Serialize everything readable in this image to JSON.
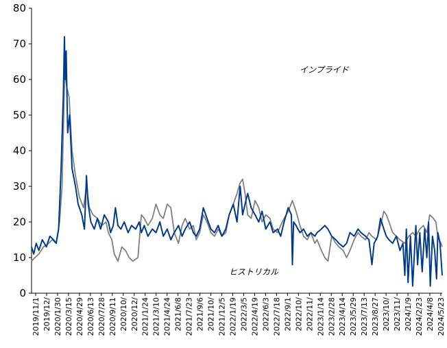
{
  "chart_data": {
    "type": "line",
    "title": "",
    "xlabel": "",
    "ylabel": "",
    "ylim": [
      0,
      80
    ],
    "yticks": [
      0,
      10,
      20,
      30,
      40,
      50,
      60,
      70,
      80
    ],
    "xlim": [
      "2019-11-01",
      "2024-06-10"
    ],
    "xtick_labels": [
      "2019/11/1",
      "2019/12/",
      "2020/1/30",
      "2020/3/15",
      "2020/4/29",
      "2020/6/13",
      "2020/7/28",
      "2020/9/11",
      "2020/10/",
      "2020/12/",
      "2021/1/24",
      "2021/3/10",
      "2021/4/24",
      "2021/6/8",
      "2021/7/23",
      "2021/9/6",
      "2021/10/",
      "2021/12/5",
      "2022/1/19",
      "2022/3/5",
      "2022/4/19",
      "2022/6/3",
      "2022/7/18",
      "2022/9/1",
      "2022/10/",
      "2022/11/",
      "2023/1/14",
      "2023/2/28",
      "2023/4/14",
      "2023/5/29",
      "2023/7/13",
      "2023/8/27",
      "2023/10/",
      "2023/11/",
      "2024/1/9",
      "2024/2/23",
      "2024/4/8",
      "2024/5/23"
    ],
    "grid": false,
    "annotations": [
      "インプライド",
      "ヒストリカル"
    ],
    "series": [
      {
        "key": "implied",
        "color": "#7f7f7f",
        "points": [
          [
            "2019-11-01",
            9
          ],
          [
            "2019-11-15",
            10
          ],
          [
            "2019-12-01",
            11
          ],
          [
            "2019-12-20",
            13
          ],
          [
            "2020-01-10",
            14
          ],
          [
            "2020-01-25",
            15
          ],
          [
            "2020-02-10",
            14
          ],
          [
            "2020-02-24",
            20
          ],
          [
            "2020-03-05",
            30
          ],
          [
            "2020-03-16",
            62
          ],
          [
            "2020-03-24",
            58
          ],
          [
            "2020-04-03",
            55
          ],
          [
            "2020-04-15",
            40
          ],
          [
            "2020-04-29",
            33
          ],
          [
            "2020-05-15",
            27
          ],
          [
            "2020-06-01",
            24
          ],
          [
            "2020-06-13",
            30
          ],
          [
            "2020-06-25",
            24
          ],
          [
            "2020-07-10",
            22
          ],
          [
            "2020-07-28",
            21
          ],
          [
            "2020-08-15",
            19
          ],
          [
            "2020-09-01",
            20
          ],
          [
            "2020-09-11",
            17
          ],
          [
            "2020-09-25",
            15
          ],
          [
            "2020-10-05",
            11
          ],
          [
            "2020-10-20",
            9
          ],
          [
            "2020-11-05",
            13
          ],
          [
            "2020-11-20",
            12
          ],
          [
            "2020-12-05",
            10
          ],
          [
            "2020-12-20",
            9
          ],
          [
            "2021-01-10",
            10
          ],
          [
            "2021-01-24",
            22
          ],
          [
            "2021-02-05",
            21
          ],
          [
            "2021-02-20",
            19
          ],
          [
            "2021-03-10",
            21
          ],
          [
            "2021-03-25",
            25
          ],
          [
            "2021-04-10",
            22
          ],
          [
            "2021-04-24",
            21
          ],
          [
            "2021-05-10",
            25
          ],
          [
            "2021-05-25",
            24
          ],
          [
            "2021-06-08",
            17
          ],
          [
            "2021-06-25",
            14
          ],
          [
            "2021-07-10",
            19
          ],
          [
            "2021-07-23",
            21
          ],
          [
            "2021-08-10",
            18
          ],
          [
            "2021-08-25",
            19
          ],
          [
            "2021-09-06",
            15
          ],
          [
            "2021-09-20",
            17
          ],
          [
            "2021-10-05",
            22
          ],
          [
            "2021-10-20",
            20
          ],
          [
            "2021-11-05",
            17
          ],
          [
            "2021-11-20",
            16
          ],
          [
            "2021-12-05",
            18
          ],
          [
            "2021-12-20",
            16
          ],
          [
            "2022-01-05",
            17
          ],
          [
            "2022-01-19",
            22
          ],
          [
            "2022-02-05",
            25
          ],
          [
            "2022-02-20",
            28
          ],
          [
            "2022-03-05",
            31
          ],
          [
            "2022-03-15",
            32
          ],
          [
            "2022-03-25",
            28
          ],
          [
            "2022-04-05",
            22
          ],
          [
            "2022-04-19",
            21
          ],
          [
            "2022-05-05",
            26
          ],
          [
            "2022-05-20",
            24
          ],
          [
            "2022-06-03",
            20
          ],
          [
            "2022-06-18",
            22
          ],
          [
            "2022-07-05",
            21
          ],
          [
            "2022-07-18",
            18
          ],
          [
            "2022-08-05",
            17
          ],
          [
            "2022-08-18",
            19
          ],
          [
            "2022-09-01",
            21
          ],
          [
            "2022-09-18",
            23
          ],
          [
            "2022-10-05",
            26
          ],
          [
            "2022-10-20",
            23
          ],
          [
            "2022-11-05",
            19
          ],
          [
            "2022-11-20",
            16
          ],
          [
            "2022-12-05",
            15
          ],
          [
            "2022-12-20",
            17
          ],
          [
            "2023-01-05",
            14
          ],
          [
            "2023-01-14",
            15
          ],
          [
            "2023-02-01",
            12
          ],
          [
            "2023-02-15",
            10
          ],
          [
            "2023-02-28",
            9
          ],
          [
            "2023-03-15",
            16
          ],
          [
            "2023-04-01",
            14
          ],
          [
            "2023-04-14",
            13
          ],
          [
            "2023-05-01",
            12
          ],
          [
            "2023-05-15",
            10
          ],
          [
            "2023-05-29",
            12
          ],
          [
            "2023-06-15",
            15
          ],
          [
            "2023-07-01",
            17
          ],
          [
            "2023-07-13",
            16
          ],
          [
            "2023-08-01",
            15
          ],
          [
            "2023-08-15",
            17
          ],
          [
            "2023-08-27",
            16
          ],
          [
            "2023-09-15",
            15
          ],
          [
            "2023-10-01",
            19
          ],
          [
            "2023-10-15",
            23
          ],
          [
            "2023-10-25",
            22
          ],
          [
            "2023-11-05",
            20
          ],
          [
            "2023-11-20",
            17
          ],
          [
            "2023-12-05",
            16
          ],
          [
            "2023-12-20",
            15
          ],
          [
            "2024-01-09",
            14
          ],
          [
            "2024-01-25",
            16
          ],
          [
            "2024-02-10",
            17
          ],
          [
            "2024-02-23",
            16
          ],
          [
            "2024-03-10",
            18
          ],
          [
            "2024-03-25",
            19
          ],
          [
            "2024-04-08",
            17
          ],
          [
            "2024-04-20",
            22
          ],
          [
            "2024-05-05",
            21
          ],
          [
            "2024-05-15",
            20
          ],
          [
            "2024-05-23",
            16
          ],
          [
            "2024-06-05",
            14
          ],
          [
            "2024-06-10",
            13
          ]
        ]
      },
      {
        "key": "historical",
        "color": "#003a8c",
        "points": [
          [
            "2019-11-01",
            13
          ],
          [
            "2019-11-10",
            11
          ],
          [
            "2019-11-20",
            14
          ],
          [
            "2019-12-01",
            12
          ],
          [
            "2019-12-15",
            15
          ],
          [
            "2020-01-01",
            13
          ],
          [
            "2020-01-15",
            16
          ],
          [
            "2020-01-30",
            15
          ],
          [
            "2020-02-10",
            14
          ],
          [
            "2020-02-20",
            18
          ],
          [
            "2020-03-01",
            35
          ],
          [
            "2020-03-10",
            55
          ],
          [
            "2020-03-15",
            72
          ],
          [
            "2020-03-18",
            60
          ],
          [
            "2020-03-22",
            68
          ],
          [
            "2020-03-28",
            45
          ],
          [
            "2020-04-05",
            50
          ],
          [
            "2020-04-15",
            35
          ],
          [
            "2020-04-29",
            30
          ],
          [
            "2020-05-10",
            25
          ],
          [
            "2020-05-25",
            22
          ],
          [
            "2020-06-05",
            18
          ],
          [
            "2020-06-13",
            33
          ],
          [
            "2020-06-20",
            25
          ],
          [
            "2020-07-01",
            20
          ],
          [
            "2020-07-15",
            18
          ],
          [
            "2020-07-28",
            21
          ],
          [
            "2020-08-10",
            18
          ],
          [
            "2020-08-25",
            22
          ],
          [
            "2020-09-11",
            20
          ],
          [
            "2020-09-20",
            17
          ],
          [
            "2020-10-01",
            19
          ],
          [
            "2020-10-10",
            24
          ],
          [
            "2020-10-20",
            19
          ],
          [
            "2020-11-01",
            18
          ],
          [
            "2020-11-15",
            20
          ],
          [
            "2020-12-01",
            17
          ],
          [
            "2020-12-15",
            19
          ],
          [
            "2021-01-01",
            18
          ],
          [
            "2021-01-15",
            20
          ],
          [
            "2021-01-24",
            17
          ],
          [
            "2021-02-05",
            19
          ],
          [
            "2021-02-20",
            16
          ],
          [
            "2021-03-10",
            18
          ],
          [
            "2021-03-25",
            17
          ],
          [
            "2021-04-10",
            20
          ],
          [
            "2021-04-24",
            16
          ],
          [
            "2021-05-10",
            18
          ],
          [
            "2021-05-25",
            15
          ],
          [
            "2021-06-08",
            17
          ],
          [
            "2021-06-25",
            19
          ],
          [
            "2021-07-10",
            16
          ],
          [
            "2021-07-23",
            18
          ],
          [
            "2021-08-10",
            20
          ],
          [
            "2021-08-25",
            17
          ],
          [
            "2021-09-06",
            16
          ],
          [
            "2021-09-20",
            18
          ],
          [
            "2021-10-05",
            24
          ],
          [
            "2021-10-20",
            21
          ],
          [
            "2021-11-05",
            18
          ],
          [
            "2021-11-20",
            17
          ],
          [
            "2021-12-05",
            19
          ],
          [
            "2021-12-20",
            16
          ],
          [
            "2022-01-05",
            18
          ],
          [
            "2022-01-19",
            22
          ],
          [
            "2022-02-05",
            25
          ],
          [
            "2022-02-20",
            20
          ],
          [
            "2022-03-05",
            30
          ],
          [
            "2022-03-15",
            22
          ],
          [
            "2022-03-25",
            25
          ],
          [
            "2022-04-05",
            28
          ],
          [
            "2022-04-19",
            24
          ],
          [
            "2022-05-05",
            22
          ],
          [
            "2022-05-20",
            20
          ],
          [
            "2022-06-03",
            23
          ],
          [
            "2022-06-18",
            18
          ],
          [
            "2022-07-05",
            20
          ],
          [
            "2022-07-18",
            17
          ],
          [
            "2022-08-05",
            18
          ],
          [
            "2022-08-18",
            16
          ],
          [
            "2022-09-01",
            20
          ],
          [
            "2022-09-18",
            24
          ],
          [
            "2022-10-01",
            22
          ],
          [
            "2022-10-05",
            8
          ],
          [
            "2022-10-10",
            20
          ],
          [
            "2022-10-20",
            19
          ],
          [
            "2022-11-05",
            17
          ],
          [
            "2022-11-20",
            18
          ],
          [
            "2022-12-05",
            16
          ],
          [
            "2022-12-20",
            17
          ],
          [
            "2023-01-05",
            16
          ],
          [
            "2023-01-14",
            17
          ],
          [
            "2023-02-01",
            18
          ],
          [
            "2023-02-15",
            19
          ],
          [
            "2023-02-28",
            18
          ],
          [
            "2023-03-15",
            16
          ],
          [
            "2023-04-01",
            15
          ],
          [
            "2023-04-14",
            14
          ],
          [
            "2023-05-01",
            13
          ],
          [
            "2023-05-15",
            14
          ],
          [
            "2023-05-29",
            17
          ],
          [
            "2023-06-15",
            16
          ],
          [
            "2023-07-01",
            18
          ],
          [
            "2023-07-13",
            17
          ],
          [
            "2023-08-01",
            16
          ],
          [
            "2023-08-15",
            15
          ],
          [
            "2023-08-27",
            8
          ],
          [
            "2023-09-05",
            14
          ],
          [
            "2023-09-20",
            16
          ],
          [
            "2023-10-01",
            21
          ],
          [
            "2023-10-15",
            18
          ],
          [
            "2023-10-25",
            16
          ],
          [
            "2023-11-05",
            15
          ],
          [
            "2023-11-20",
            14
          ],
          [
            "2023-12-05",
            16
          ],
          [
            "2023-12-20",
            12
          ],
          [
            "2024-01-01",
            14
          ],
          [
            "2024-01-09",
            5
          ],
          [
            "2024-01-15",
            18
          ],
          [
            "2024-01-22",
            3
          ],
          [
            "2024-02-01",
            16
          ],
          [
            "2024-02-10",
            2
          ],
          [
            "2024-02-23",
            19
          ],
          [
            "2024-03-01",
            8
          ],
          [
            "2024-03-10",
            17
          ],
          [
            "2024-03-20",
            6
          ],
          [
            "2024-03-30",
            18
          ],
          [
            "2024-04-08",
            10
          ],
          [
            "2024-04-15",
            20
          ],
          [
            "2024-04-22",
            2
          ],
          [
            "2024-05-01",
            16
          ],
          [
            "2024-05-10",
            12
          ],
          [
            "2024-05-18",
            4
          ],
          [
            "2024-05-23",
            17
          ],
          [
            "2024-06-01",
            14
          ],
          [
            "2024-06-10",
            5
          ]
        ]
      }
    ]
  }
}
